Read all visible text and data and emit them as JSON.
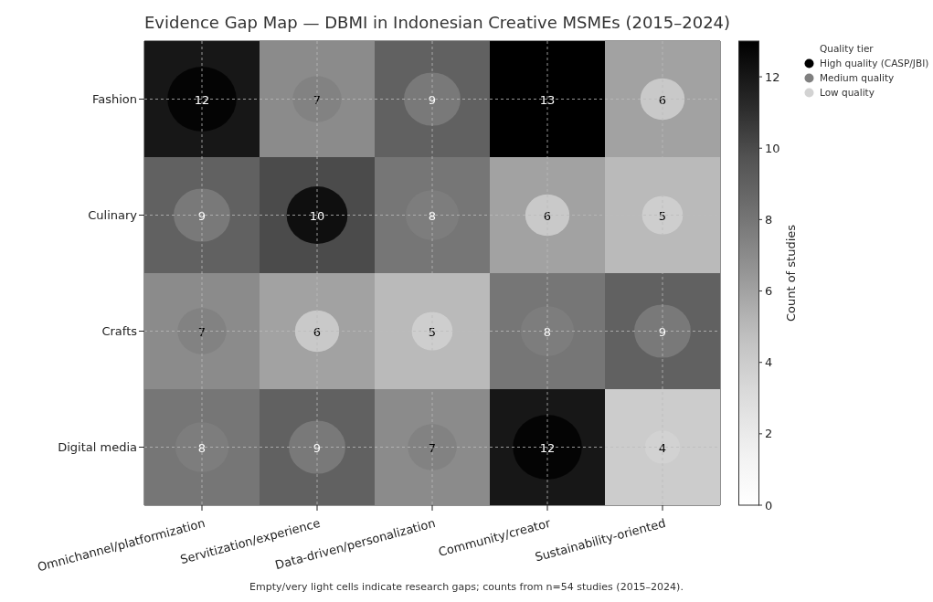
{
  "chart_data": {
    "type": "heatmap",
    "title": "Evidence Gap Map — DBMI in Indonesian Creative MSMEs (2015–2024)",
    "categories": [
      "Omnichannel/platformization",
      "Servitization/experience",
      "Data-driven/personalization",
      "Community/creator",
      "Sustainability-oriented"
    ],
    "y_categories": [
      "Fashion",
      "Culinary",
      "Crafts",
      "Digital media"
    ],
    "cells": [
      [
        12,
        7,
        9,
        13,
        6
      ],
      [
        9,
        10,
        8,
        6,
        5
      ],
      [
        7,
        6,
        5,
        8,
        9
      ],
      [
        8,
        9,
        7,
        12,
        4
      ]
    ],
    "clim": [
      0,
      13
    ],
    "cticks": [
      0,
      2,
      4,
      6,
      8,
      10,
      12
    ],
    "clabel": "Count of studies",
    "data_labels": true,
    "grid": true,
    "legend": "top right",
    "legend_title": "Quality tier",
    "series": [
      {
        "name": "High quality (CASP/JBI)",
        "type": "bubble",
        "color": "#000000",
        "x": [
          "Omnichannel/platformization",
          "Servitization/experience",
          "Community/creator"
        ],
        "values": [
          0,
          1,
          3
        ],
        "value_labels": [
          null,
          null,
          null
        ],
        "sizes": [
          1,
          0.78,
          1
        ]
      },
      {
        "name": "Medium quality",
        "type": "bubble",
        "color": "#808080",
        "x": [
          "Servitization/experience",
          "Data-driven/personalization",
          "Omnichannel/platformization",
          "Data-driven/personalization",
          "Omnichannel/platformization",
          "Community/creator",
          "Sustainability-oriented",
          "Omnichannel/platformization",
          "Servitization/experience",
          "Data-driven/personalization"
        ],
        "values": [
          0,
          0,
          1,
          1,
          2,
          2,
          2,
          3,
          3,
          3
        ],
        "value_labels": [
          null,
          null,
          null,
          null,
          null,
          null,
          null,
          null,
          null,
          null
        ],
        "sizes": [
          0.5,
          0.67,
          0.67,
          0.59,
          0.5,
          0.59,
          0.67,
          0.59,
          0.67,
          0.5
        ]
      },
      {
        "name": "Low quality",
        "type": "bubble",
        "color": "#d3d3d3",
        "x": [
          "Sustainability-oriented",
          "Community/creator",
          "Sustainability-oriented",
          "Servitization/experience",
          "Data-driven/personalization",
          "Sustainability-oriented"
        ],
        "values": [
          0,
          1,
          1,
          2,
          2,
          3
        ],
        "value_labels": [
          null,
          null,
          null,
          null,
          null,
          null
        ],
        "sizes": [
          0.41,
          0.41,
          0.35,
          0.41,
          0.35,
          0.26
        ]
      }
    ],
    "annotations": [
      "Empty/very light cells indicate research gaps; counts from n=54 studies (2015–2024)."
    ]
  }
}
